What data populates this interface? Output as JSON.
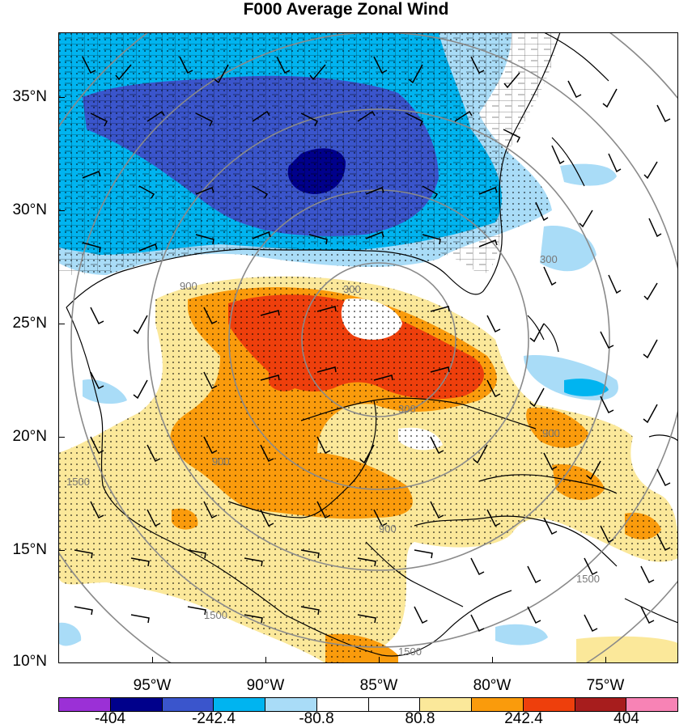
{
  "title": "F000 Average Zonal Wind",
  "lat_labels": [
    "35°N",
    "30°N",
    "25°N",
    "20°N",
    "15°N",
    "10°N"
  ],
  "lon_labels": [
    "95°W",
    "90°W",
    "85°W",
    "80°W",
    "75°W"
  ],
  "colorbar": {
    "colors": [
      "#9b30d6",
      "#00008b",
      "#3a55cc",
      "#00b4f0",
      "#a9dcf7",
      "#ffffff",
      "#ffffff",
      "#fbe89a",
      "#fa9b0c",
      "#ee3f0c",
      "#a71d1d",
      "#f783b5"
    ],
    "labels": [
      "-404",
      "-242.4",
      "-80.8",
      "80.8",
      "242.4",
      "404"
    ]
  },
  "range_ring_labels": [
    "300",
    "300",
    "900",
    "900",
    "900",
    "1500",
    "1500",
    "1500",
    "1500",
    "300",
    "900"
  ],
  "colors": {
    "coastline": "#000000",
    "range_ring": "#8a8a8a",
    "stipple": "#000000"
  }
}
